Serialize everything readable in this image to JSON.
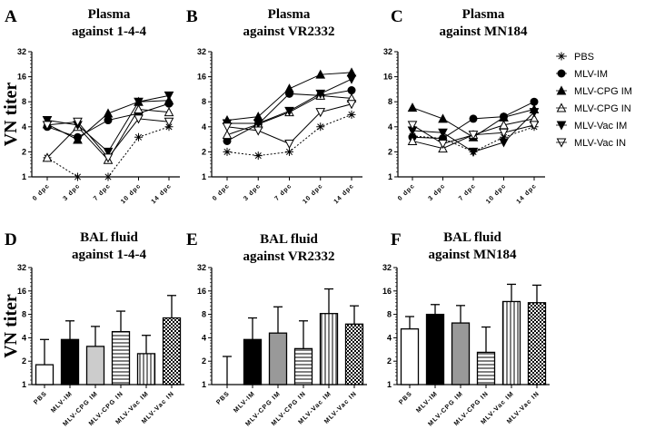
{
  "chart_data": [
    {
      "panel": "A",
      "type": "line",
      "title": [
        "Plasma",
        "against 1-4-4"
      ],
      "ylabel": "VN titer",
      "yscale": "log2",
      "ylim": [
        1,
        32
      ],
      "yticks": [
        "1",
        "2",
        "4",
        "8",
        "16",
        "32"
      ],
      "categories": [
        "0 dpc",
        "3 dpc",
        "7 dpc",
        "10 dpc",
        "14 dpc"
      ],
      "series": [
        {
          "name": "PBS",
          "values": [
            1.7,
            1,
            1,
            3,
            4
          ]
        },
        {
          "name": "MLV-IM",
          "values": [
            4,
            3,
            4.8,
            5.8,
            7.6
          ]
        },
        {
          "name": "MLV-CPG IM",
          "values": [
            4.3,
            2.8,
            5.8,
            8,
            8.3
          ]
        },
        {
          "name": "MLV-CPG IN",
          "values": [
            1.7,
            4,
            1.6,
            6.5,
            6
          ]
        },
        {
          "name": "MLV-Vac IM",
          "values": [
            4.8,
            4.2,
            2,
            8,
            9.5
          ]
        },
        {
          "name": "MLV-Vac IN",
          "values": [
            4.2,
            4.6,
            1.7,
            5,
            4.6
          ]
        }
      ]
    },
    {
      "panel": "B",
      "type": "line",
      "title": [
        "Plasma",
        "against VR2332"
      ],
      "ylabel": "",
      "yscale": "log2",
      "ylim": [
        1,
        32
      ],
      "yticks": [
        "1",
        "2",
        "4",
        "8",
        "16",
        "32"
      ],
      "categories": [
        "0 dpc",
        "3 dpc",
        "7 dpc",
        "10 dpc",
        "14 dpc"
      ],
      "series": [
        {
          "name": "PBS",
          "values": [
            2,
            1.8,
            2,
            4,
            5.6
          ]
        },
        {
          "name": "MLV-IM",
          "values": [
            2.7,
            4.3,
            10,
            9.5,
            11
          ]
        },
        {
          "name": "MLV-CPG IM",
          "values": [
            4.8,
            5.3,
            11.5,
            17,
            18
          ]
        },
        {
          "name": "MLV-CPG IN",
          "values": [
            3.2,
            4.3,
            6,
            9.5,
            8.8
          ]
        },
        {
          "name": "MLV-Vac IM",
          "values": [
            4.4,
            4.4,
            6.2,
            10,
            15
          ]
        },
        {
          "name": "MLV-Vac IN",
          "values": [
            4,
            3.6,
            2.5,
            6,
            7.5
          ]
        }
      ]
    },
    {
      "panel": "C",
      "type": "line",
      "title": [
        "Plasma",
        "against MN184"
      ],
      "ylabel": "",
      "yscale": "log2",
      "ylim": [
        1,
        32
      ],
      "yticks": [
        "1",
        "2",
        "4",
        "8",
        "16",
        "32"
      ],
      "categories": [
        "0 dpc",
        "3 dpc",
        "7 dpc",
        "10 dpc",
        "14 dpc"
      ],
      "legend": "right",
      "series": [
        {
          "name": "PBS",
          "values": [
            3.1,
            2.9,
            2,
            3,
            4
          ]
        },
        {
          "name": "MLV-IM",
          "values": [
            3,
            2.9,
            5,
            5.3,
            8
          ]
        },
        {
          "name": "MLV-CPG IM",
          "values": [
            6.8,
            5,
            3,
            5.2,
            6.5
          ]
        },
        {
          "name": "MLV-CPG IN",
          "values": [
            2.7,
            2.2,
            3.2,
            4.2,
            5
          ]
        },
        {
          "name": "MLV-Vac IM",
          "values": [
            3.6,
            3.4,
            2,
            2.6,
            6
          ]
        },
        {
          "name": "MLV-Vac IN",
          "values": [
            4.2,
            2.5,
            3.2,
            3.4,
            4.2
          ]
        }
      ]
    },
    {
      "panel": "D",
      "type": "bar",
      "title": [
        "BAL fluid",
        "against 1-4-4"
      ],
      "ylabel": "VN titer",
      "yscale": "log2",
      "ylim": [
        1,
        32
      ],
      "yticks": [
        "1",
        "2",
        "4",
        "8",
        "16",
        "32"
      ],
      "categories": [
        "PBS",
        "MLV-IM",
        "MLV-CPG IM",
        "MLV-CPG IN",
        "MLV-Vac IM",
        "MLV-Vac IN"
      ],
      "values": [
        1.8,
        3.8,
        3.1,
        4.8,
        2.5,
        7.2
      ],
      "error_upper": [
        3.8,
        6.6,
        5.6,
        8.8,
        4.3,
        14
      ]
    },
    {
      "panel": "E",
      "type": "bar",
      "title": [
        "BAL fluid",
        "against VR2332"
      ],
      "ylabel": "",
      "yscale": "log2",
      "ylim": [
        1,
        32
      ],
      "yticks": [
        "1",
        "2",
        "4",
        "8",
        "16",
        "32"
      ],
      "categories": [
        "PBS",
        "MLV-IM",
        "MLV-CPG IM",
        "MLV-CPG IN",
        "MLV-Vac IM",
        "MLV-Vac IN"
      ],
      "values": [
        1,
        3.8,
        4.6,
        2.9,
        8.2,
        6
      ],
      "error_upper": [
        2.3,
        7.2,
        10,
        6.6,
        17,
        10.3
      ]
    },
    {
      "panel": "F",
      "type": "bar",
      "title": [
        "BAL fluid",
        "against MN184"
      ],
      "ylabel": "",
      "yscale": "log2",
      "ylim": [
        1,
        32
      ],
      "yticks": [
        "1",
        "2",
        "4",
        "8",
        "16",
        "32"
      ],
      "categories": [
        "PBS",
        "MLV-IM",
        "MLV-CPG IM",
        "MLV-CPG IN",
        "MLV-Vac IM",
        "MLV-Vac IN"
      ],
      "values": [
        5.2,
        8,
        6.2,
        2.6,
        11.7,
        11.3
      ],
      "error_upper": [
        7.5,
        10.7,
        10.4,
        5.5,
        19.5,
        19
      ]
    }
  ],
  "legend": [
    "PBS",
    "MLV-IM",
    "MLV-CPG IM",
    "MLV-CPG IN",
    "MLV-Vac IM",
    "MLV-Vac IN"
  ],
  "colors": {
    "ink": "#000000",
    "cpg_im_bar_light": "#cccccc",
    "cpg_im_bar_dark": "#999999"
  }
}
